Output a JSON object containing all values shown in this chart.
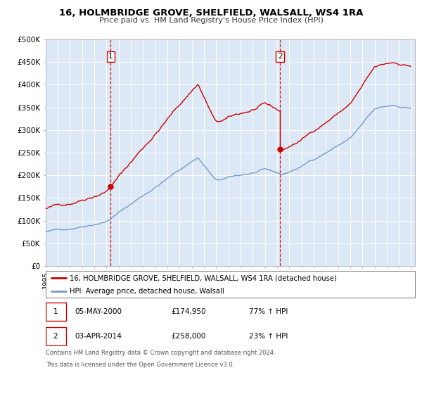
{
  "title1": "16, HOLMBRIDGE GROVE, SHELFIELD, WALSALL, WS4 1RA",
  "title2": "Price paid vs. HM Land Registry's House Price Index (HPI)",
  "ylim": [
    0,
    500000
  ],
  "xlim_start": 1995.0,
  "xlim_end": 2025.3,
  "ytick_labels": [
    "£0",
    "£50K",
    "£100K",
    "£150K",
    "£200K",
    "£250K",
    "£300K",
    "£350K",
    "£400K",
    "£450K",
    "£500K"
  ],
  "ytick_values": [
    0,
    50000,
    100000,
    150000,
    200000,
    250000,
    300000,
    350000,
    400000,
    450000,
    500000
  ],
  "line1_color": "#cc0000",
  "line2_color": "#7799cc",
  "vline_color": "#cc0000",
  "sale1_x": 2000.35,
  "sale1_y": 174950,
  "sale2_x": 2014.25,
  "sale2_y": 258000,
  "legend_label1": "16, HOLMBRIDGE GROVE, SHELFIELD, WALSALL, WS4 1RA (detached house)",
  "legend_label2": "HPI: Average price, detached house, Walsall",
  "table_row1": [
    "1",
    "05-MAY-2000",
    "£174,950",
    "77% ↑ HPI"
  ],
  "table_row2": [
    "2",
    "03-APR-2014",
    "£258,000",
    "23% ↑ HPI"
  ],
  "footnote1": "Contains HM Land Registry data © Crown copyright and database right 2024.",
  "footnote2": "This data is licensed under the Open Government Licence v3.0.",
  "plot_bg_color": "#dce8f5",
  "grid_color": "#ffffff"
}
